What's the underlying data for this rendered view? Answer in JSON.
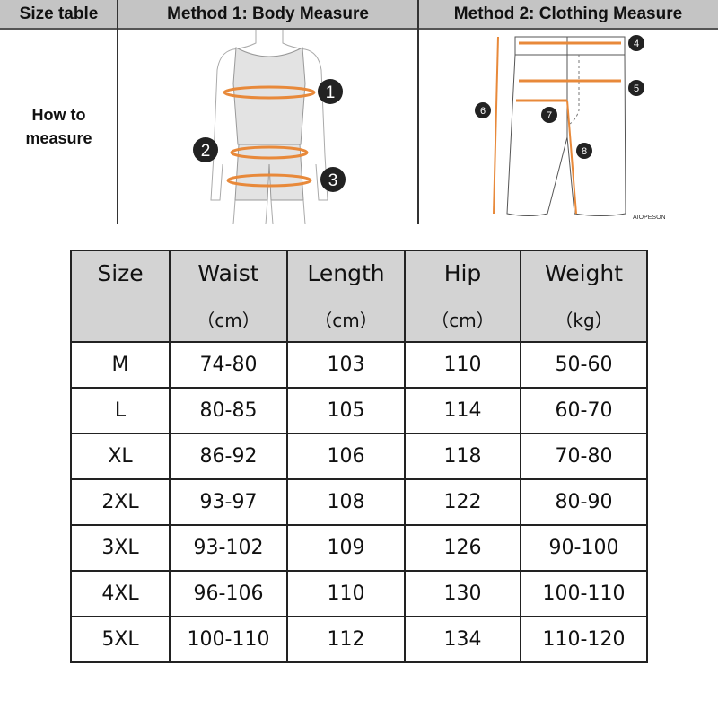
{
  "header": {
    "col1": "Size table",
    "col2": "Method 1: Body  Measure",
    "col3": "Method 2: Clothing Measure"
  },
  "how_to_measure": [
    "How to",
    "measure"
  ],
  "body_markers": [
    "1",
    "2",
    "3"
  ],
  "clothing_markers": [
    "4",
    "5",
    "6",
    "7",
    "8"
  ],
  "watermark": "AIOPESON",
  "colors": {
    "accent": "#e8893a",
    "header_bg": "#c4c4c4",
    "table_header_bg": "#d3d3d3"
  },
  "table": {
    "columns": [
      {
        "label": "Size",
        "unit": ""
      },
      {
        "label": "Waist",
        "unit": "（cm）"
      },
      {
        "label": "Length",
        "unit": "（cm）"
      },
      {
        "label": "Hip",
        "unit": "（cm）"
      },
      {
        "label": "Weight",
        "unit": "（kg）"
      }
    ],
    "rows": [
      [
        "M",
        "74-80",
        "103",
        "110",
        "50-60"
      ],
      [
        "L",
        "80-85",
        "105",
        "114",
        "60-70"
      ],
      [
        "XL",
        "86-92",
        "106",
        "118",
        "70-80"
      ],
      [
        "2XL",
        "93-97",
        "108",
        "122",
        "80-90"
      ],
      [
        "3XL",
        "93-102",
        "109",
        "126",
        "90-100"
      ],
      [
        "4XL",
        "96-106",
        "110",
        "130",
        "100-110"
      ],
      [
        "5XL",
        "100-110",
        "112",
        "134",
        "110-120"
      ]
    ]
  }
}
